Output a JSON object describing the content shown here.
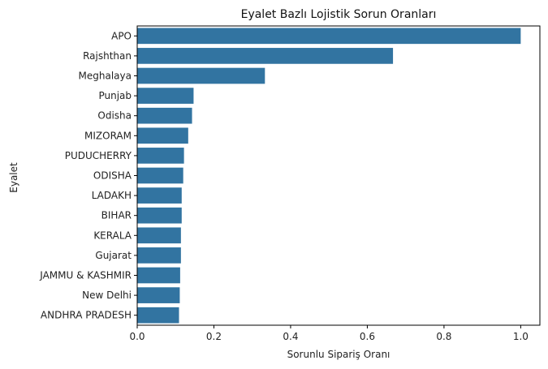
{
  "chart_data": {
    "type": "bar",
    "orientation": "horizontal",
    "title": "Eyalet Bazlı Lojistik Sorun Oranları",
    "xlabel": "Sorunlu Sipariş Oranı",
    "ylabel": "Eyalet",
    "xlim": [
      0,
      1.05
    ],
    "x_ticks": [
      "0.0",
      "0.2",
      "0.4",
      "0.6",
      "0.8",
      "1.0"
    ],
    "x_tick_values": [
      0.0,
      0.2,
      0.4,
      0.6,
      0.8,
      1.0
    ],
    "categories": [
      "APO",
      "Rajshthan",
      "Meghalaya",
      "Punjab",
      "Odisha",
      "MIZORAM",
      "PUDUCHERRY",
      "ODISHA",
      "LADAKH",
      "BIHAR",
      "KERALA",
      "Gujarat",
      "JAMMU & KASHMIR",
      "New Delhi",
      "ANDHRA PRADESH"
    ],
    "values": [
      1.0,
      0.667,
      0.333,
      0.147,
      0.143,
      0.133,
      0.122,
      0.12,
      0.116,
      0.116,
      0.114,
      0.114,
      0.112,
      0.111,
      0.109
    ],
    "bar_color": "#3274a1",
    "grid": false,
    "legend": "none"
  }
}
